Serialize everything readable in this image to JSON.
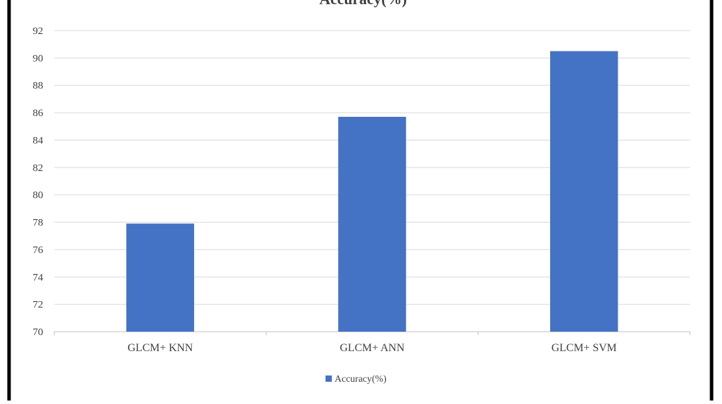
{
  "chart_data": {
    "type": "bar",
    "title": "Accuracy(%)",
    "categories": [
      "GLCM+ KNN",
      "GLCM+ ANN",
      "GLCM+ SVM"
    ],
    "series": [
      {
        "name": "Accuracy(%)",
        "values": [
          77.9,
          85.7,
          90.5
        ]
      }
    ],
    "ylim": [
      70,
      92
    ],
    "yticks": [
      70,
      72,
      74,
      76,
      78,
      80,
      82,
      84,
      86,
      88,
      90,
      92
    ],
    "grid": true,
    "legend_position": "bottom"
  },
  "colors": {
    "bar": "#4472C4",
    "grid": "#D9D9D9",
    "axis": "#BFBFBF",
    "text": "#404040",
    "frame": "#000000"
  }
}
